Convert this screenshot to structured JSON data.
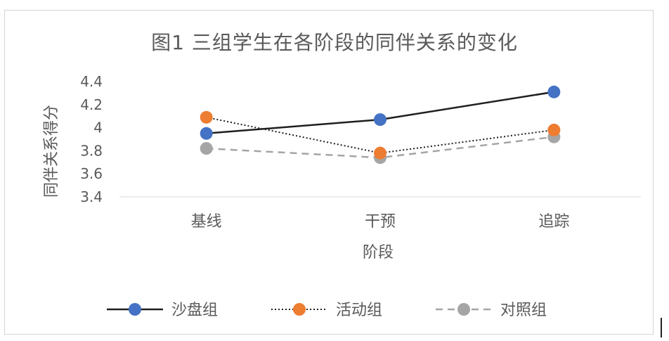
{
  "chart_data": {
    "type": "line",
    "title": "图1  三组学生在各阶段的同伴关系的变化",
    "xlabel": "阶段",
    "ylabel": "同伴关系得分",
    "categories": [
      "基线",
      "干预",
      "追踪"
    ],
    "ylim": [
      3.4,
      4.4
    ],
    "yticks": [
      "3.4",
      "3.6",
      "3.8",
      "4",
      "4.2",
      "4.4"
    ],
    "ytick_values": [
      3.4,
      3.6,
      3.8,
      4.0,
      4.2,
      4.4
    ],
    "grid": false,
    "legend_position": "bottom",
    "series": [
      {
        "name": "沙盘组",
        "values": [
          3.95,
          4.07,
          4.31
        ],
        "color": "#4472C4",
        "line_color": "#1f1f1f",
        "dash": "solid"
      },
      {
        "name": "活动组",
        "values": [
          4.09,
          3.78,
          3.98
        ],
        "color": "#ED7D31",
        "line_color": "#1f1f1f",
        "dash": "dotted"
      },
      {
        "name": "对照组",
        "values": [
          3.82,
          3.74,
          3.92
        ],
        "color": "#A5A5A5",
        "line_color": "#A5A5A5",
        "dash": "dashed"
      }
    ]
  }
}
